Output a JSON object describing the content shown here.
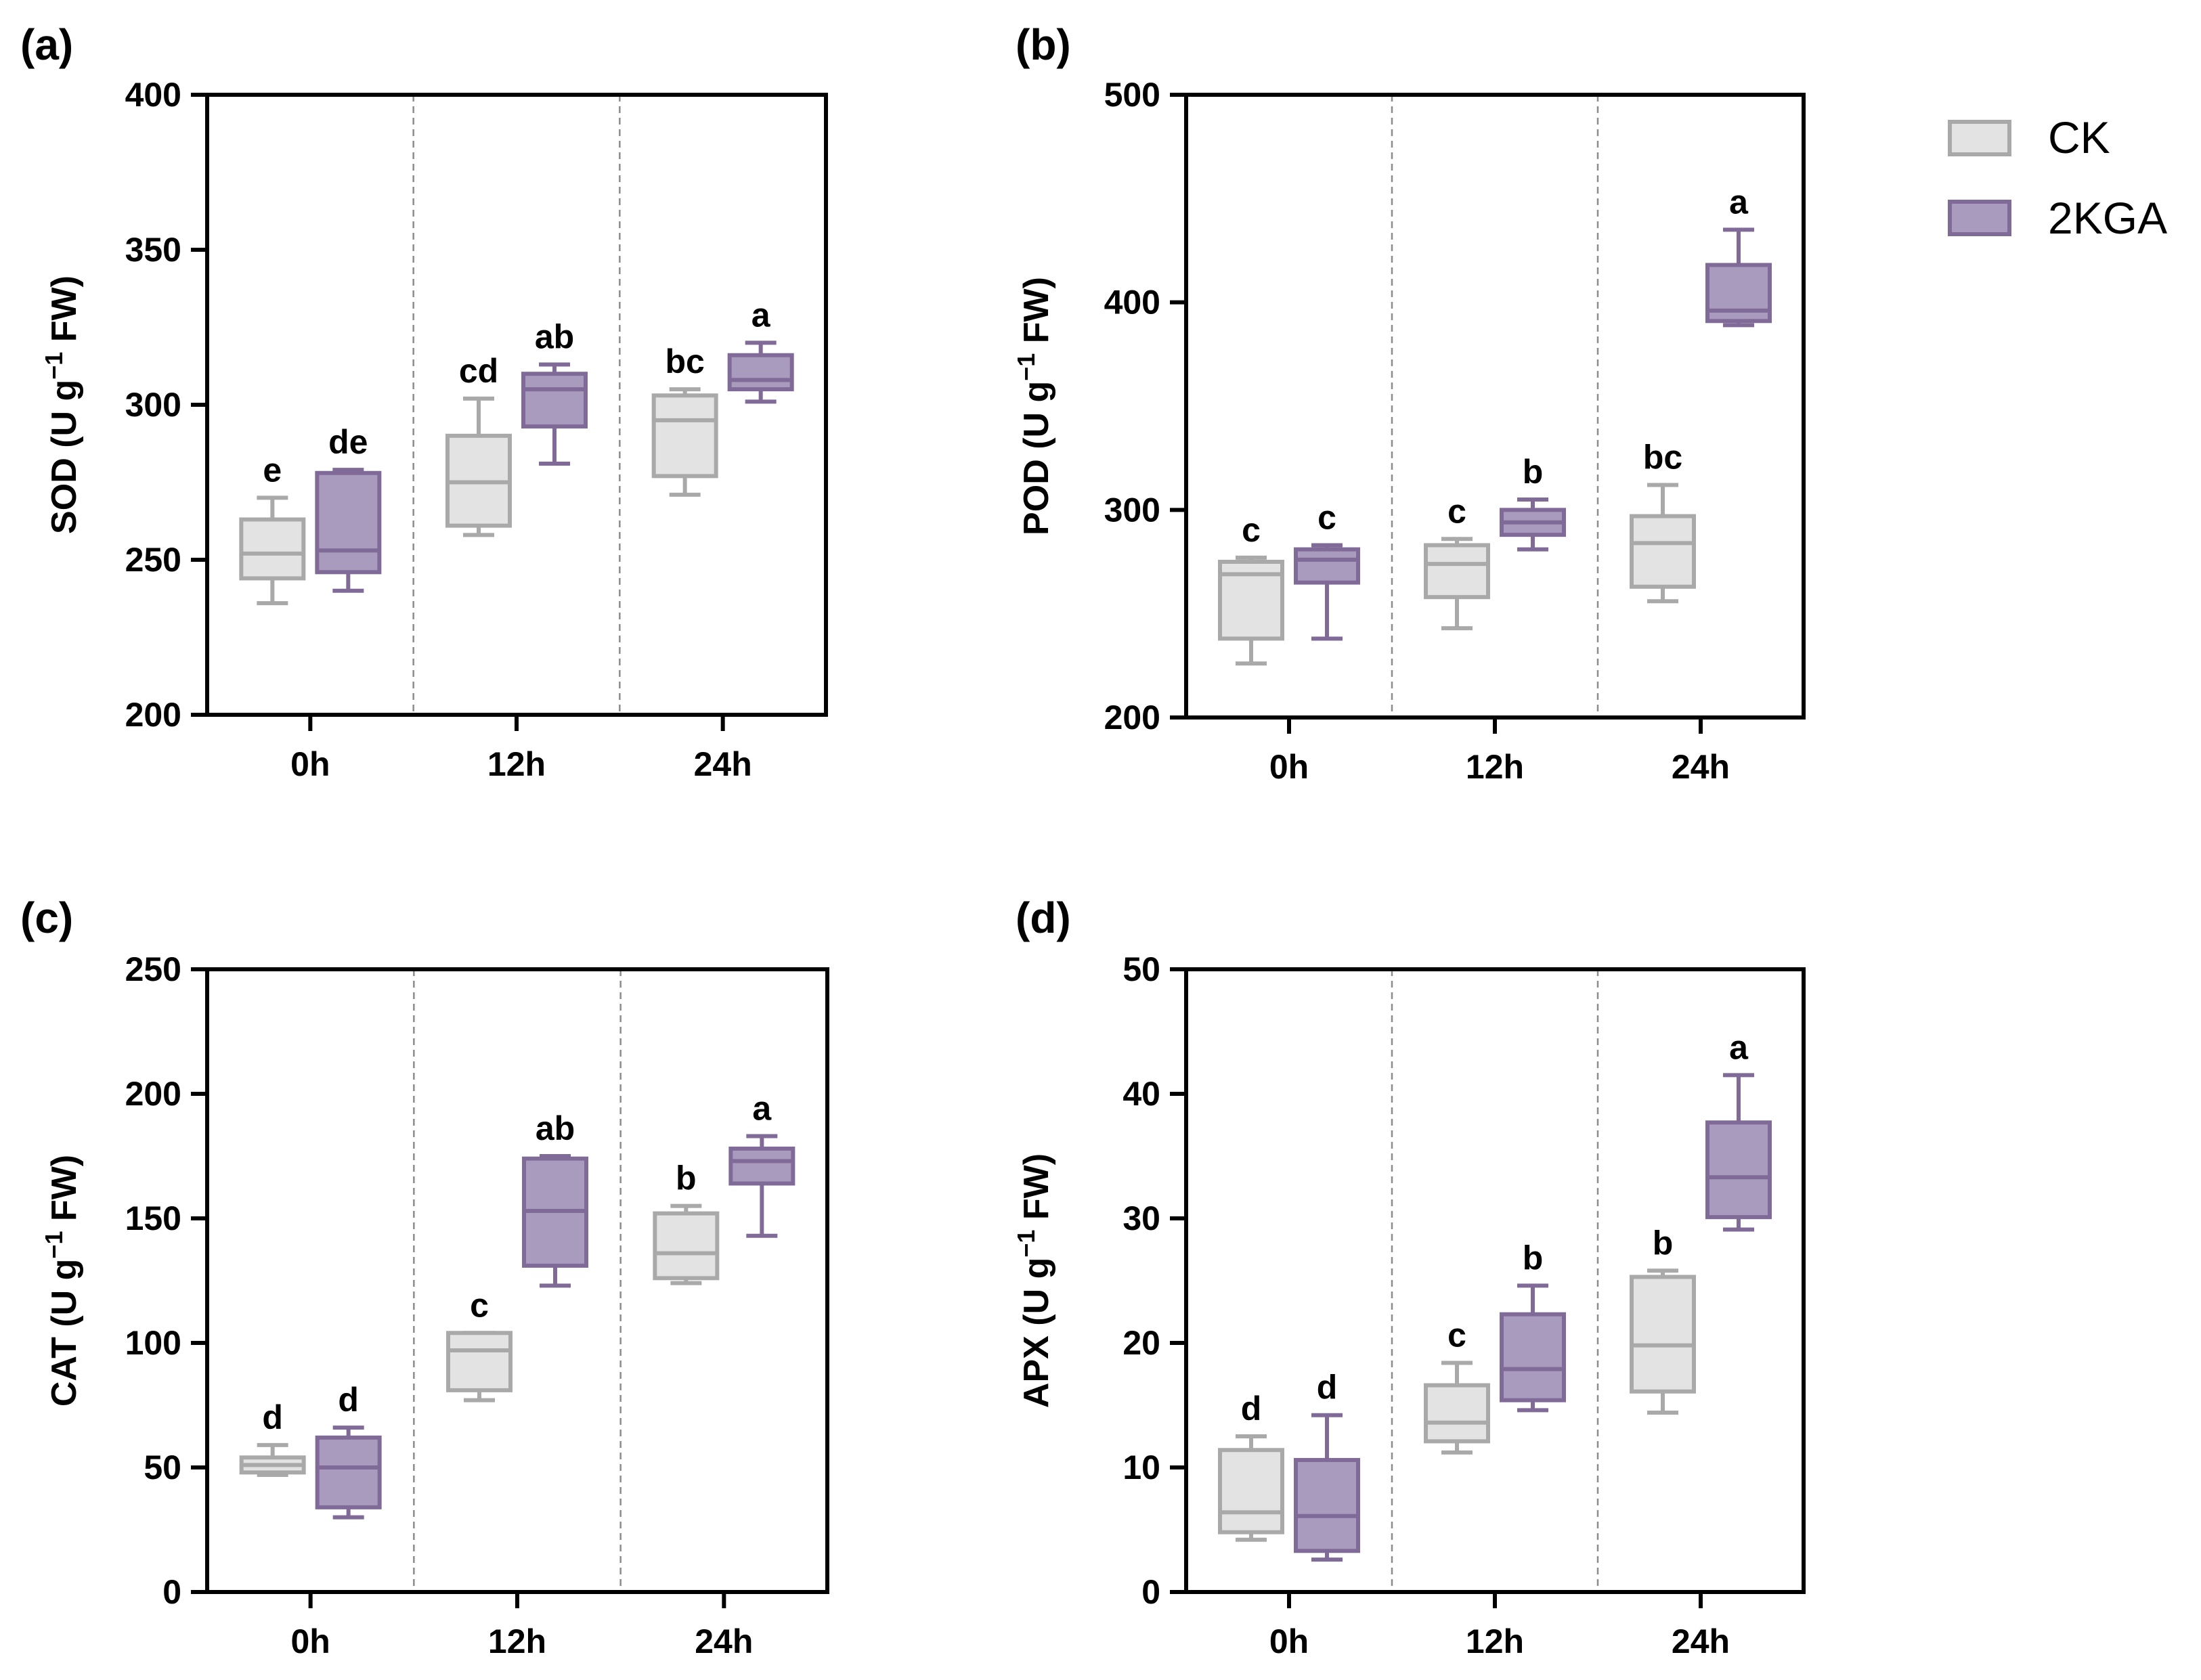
{
  "legend": {
    "entries": [
      {
        "name": "CK",
        "fill": "#e3e3e3",
        "stroke": "#a9a9a9"
      },
      {
        "name": "2KGA",
        "fill": "#a99bbe",
        "stroke": "#806a98"
      }
    ]
  },
  "chart_data": [
    {
      "type": "box",
      "panel_label": "(a)",
      "ylabel": "SOD (U g",
      "ylabel_sup": "−1",
      "ylabel_tail": " FW)",
      "ylim": [
        200,
        400
      ],
      "yticks": [
        200,
        250,
        300,
        350,
        400
      ],
      "categories": [
        "0h",
        "12h",
        "24h"
      ],
      "series": [
        {
          "name": "CK",
          "boxes": [
            {
              "min": 236,
              "q1": 244,
              "median": 252,
              "q3": 263,
              "max": 270,
              "letter": "e"
            },
            {
              "min": 258,
              "q1": 261,
              "median": 275,
              "q3": 290,
              "max": 302,
              "letter": "cd"
            },
            {
              "min": 271,
              "q1": 277,
              "median": 295,
              "q3": 303,
              "max": 305,
              "letter": "bc"
            }
          ]
        },
        {
          "name": "2KGA",
          "boxes": [
            {
              "min": 240,
              "q1": 246,
              "median": 253,
              "q3": 278,
              "max": 279,
              "letter": "de"
            },
            {
              "min": 281,
              "q1": 293,
              "median": 305,
              "q3": 310,
              "max": 313,
              "letter": "ab"
            },
            {
              "min": 301,
              "q1": 305,
              "median": 308,
              "q3": 316,
              "max": 320,
              "letter": "a"
            }
          ]
        }
      ]
    },
    {
      "type": "box",
      "panel_label": "(b)",
      "ylabel": "POD (U g",
      "ylabel_sup": "−1",
      "ylabel_tail": " FW)",
      "ylim": [
        200,
        500
      ],
      "yticks": [
        200,
        300,
        400,
        500
      ],
      "categories": [
        "0h",
        "12h",
        "24h"
      ],
      "series": [
        {
          "name": "CK",
          "boxes": [
            {
              "min": 226,
              "q1": 238,
              "median": 269,
              "q3": 275,
              "max": 277,
              "letter": "c"
            },
            {
              "min": 243,
              "q1": 258,
              "median": 274,
              "q3": 283,
              "max": 286,
              "letter": "c"
            },
            {
              "min": 256,
              "q1": 263,
              "median": 284,
              "q3": 297,
              "max": 312,
              "letter": "bc"
            }
          ]
        },
        {
          "name": "2KGA",
          "boxes": [
            {
              "min": 238,
              "q1": 265,
              "median": 276,
              "q3": 281,
              "max": 283,
              "letter": "c"
            },
            {
              "min": 281,
              "q1": 288,
              "median": 294,
              "q3": 300,
              "max": 305,
              "letter": "b"
            },
            {
              "min": 389,
              "q1": 391,
              "median": 396,
              "q3": 418,
              "max": 435,
              "letter": "a"
            }
          ]
        }
      ]
    },
    {
      "type": "box",
      "panel_label": "(c)",
      "ylabel": "CAT (U g",
      "ylabel_sup": "−1",
      "ylabel_tail": " FW)",
      "ylim": [
        0,
        250
      ],
      "yticks": [
        0,
        50,
        100,
        150,
        200,
        250
      ],
      "categories": [
        "0h",
        "12h",
        "24h"
      ],
      "series": [
        {
          "name": "CK",
          "boxes": [
            {
              "min": 47,
              "q1": 48,
              "median": 51,
              "q3": 54,
              "max": 59,
              "letter": "d"
            },
            {
              "min": 77,
              "q1": 81,
              "median": 97,
              "q3": 104,
              "max": 104,
              "letter": "c"
            },
            {
              "min": 124,
              "q1": 126,
              "median": 136,
              "q3": 152,
              "max": 155,
              "letter": "b"
            }
          ]
        },
        {
          "name": "2KGA",
          "boxes": [
            {
              "min": 30,
              "q1": 34,
              "median": 50,
              "q3": 62,
              "max": 66,
              "letter": "d"
            },
            {
              "min": 123,
              "q1": 131,
              "median": 153,
              "q3": 174,
              "max": 175,
              "letter": "ab"
            },
            {
              "min": 143,
              "q1": 164,
              "median": 173,
              "q3": 178,
              "max": 183,
              "letter": "a"
            }
          ]
        }
      ]
    },
    {
      "type": "box",
      "panel_label": "(d)",
      "ylabel": "APX (U g",
      "ylabel_sup": "−1",
      "ylabel_tail": " FW)",
      "ylim": [
        0,
        50
      ],
      "yticks": [
        0,
        10,
        20,
        30,
        40,
        50
      ],
      "categories": [
        "0h",
        "12h",
        "24h"
      ],
      "series": [
        {
          "name": "CK",
          "boxes": [
            {
              "min": 4.2,
              "q1": 4.8,
              "median": 6.4,
              "q3": 11.4,
              "max": 12.5,
              "letter": "d"
            },
            {
              "min": 11.2,
              "q1": 12.1,
              "median": 13.6,
              "q3": 16.6,
              "max": 18.4,
              "letter": "c"
            },
            {
              "min": 14.4,
              "q1": 16.1,
              "median": 19.8,
              "q3": 25.3,
              "max": 25.8,
              "letter": "b"
            }
          ]
        },
        {
          "name": "2KGA",
          "boxes": [
            {
              "min": 2.6,
              "q1": 3.3,
              "median": 6.1,
              "q3": 10.6,
              "max": 14.2,
              "letter": "d"
            },
            {
              "min": 14.6,
              "q1": 15.4,
              "median": 17.9,
              "q3": 22.3,
              "max": 24.6,
              "letter": "b"
            },
            {
              "min": 29.1,
              "q1": 30.1,
              "median": 33.3,
              "q3": 37.7,
              "max": 41.5,
              "letter": "a"
            }
          ]
        }
      ]
    }
  ]
}
